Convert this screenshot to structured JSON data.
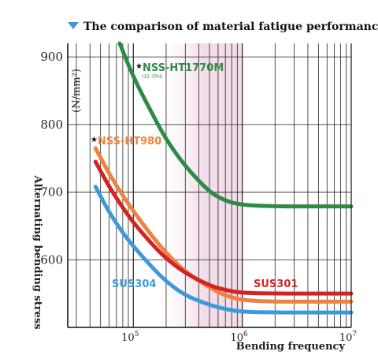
{
  "chart_data": {
    "type": "line",
    "title": "The comparison of material fatigue performance",
    "title_icon": "triangle-down-icon",
    "xlabel": "Bending frequency",
    "ylabel": "Alternating bending stress",
    "y_unit": "(N/mm²)",
    "x_scale": "log",
    "xlim": [
      25000,
      10000000
    ],
    "ylim": [
      500,
      920
    ],
    "y_ticks": [
      600,
      700,
      800,
      900
    ],
    "x_ticks": [
      {
        "base": "10",
        "exp": "5",
        "value": 100000
      },
      {
        "base": "10",
        "exp": "6",
        "value": 1000000
      },
      {
        "base": "10",
        "exp": "7",
        "value": 10000000
      }
    ],
    "grid": true,
    "highlight_band": {
      "from": 300000,
      "to": 1000000,
      "color": "#f3dde9"
    },
    "series": [
      {
        "name": "NSS-HT1770M",
        "note": "(15-7PH)",
        "marker": "★",
        "color": "#2e8b46",
        "x": [
          75000,
          100000,
          150000,
          200000,
          300000,
          500000,
          700000,
          1000000,
          2000000,
          5000000,
          10000000
        ],
        "y": [
          920,
          870,
          815,
          778,
          738,
          700,
          687,
          681,
          679,
          679,
          679
        ]
      },
      {
        "name": "NSS-HT980",
        "marker": "★",
        "color": "#f0813f",
        "x": [
          45000,
          60000,
          80000,
          100000,
          150000,
          200000,
          300000,
          500000,
          700000,
          1000000,
          2000000,
          5000000,
          10000000
        ],
        "y": [
          765,
          727,
          695,
          672,
          634,
          610,
          582,
          559,
          547,
          540,
          538,
          538,
          538
        ]
      },
      {
        "name": "SUS301",
        "color": "#d42323",
        "x": [
          45000,
          60000,
          80000,
          100000,
          150000,
          200000,
          300000,
          500000,
          700000,
          1000000,
          2000000,
          5000000,
          10000000
        ],
        "y": [
          745,
          708,
          677,
          655,
          622,
          602,
          580,
          562,
          555,
          551,
          550,
          550,
          550
        ]
      },
      {
        "name": "SUS304",
        "color": "#3d9ad8",
        "x": [
          45000,
          60000,
          80000,
          100000,
          150000,
          200000,
          300000,
          500000,
          700000,
          1000000,
          2000000,
          5000000,
          10000000
        ],
        "y": [
          708,
          670,
          640,
          620,
          588,
          568,
          547,
          533,
          527,
          523,
          522,
          522,
          522
        ]
      }
    ]
  }
}
